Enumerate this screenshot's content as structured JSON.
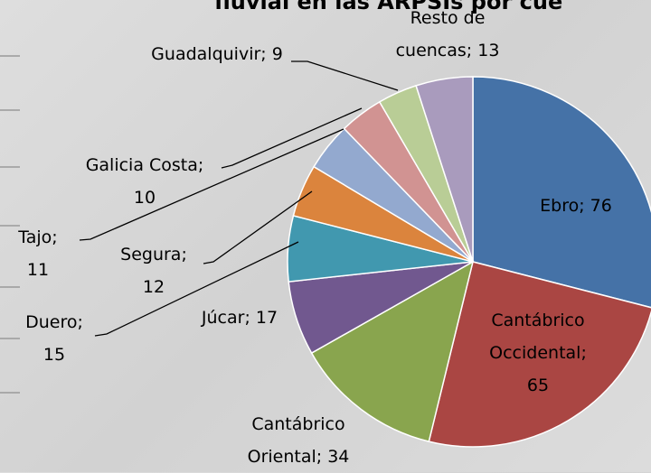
{
  "chart_data": {
    "type": "pie",
    "title": "fluvial en las ARPSIs por cue",
    "values": [
      76,
      65,
      34,
      17,
      15,
      12,
      11,
      10,
      9,
      13
    ],
    "value_labels": [
      "Ebro; 76",
      "Cantábrico\nOccidental;\n65",
      "Cantábrico\nOriental; 34",
      "Júcar; 17",
      "Duero;\n15",
      "Segura;\n12",
      "Tajo;\n11",
      "Galicia Costa;\n10",
      "Guadalquivir; 9",
      "Resto de\ncuencas; 13"
    ],
    "colors": [
      "#4572a7",
      "#aa4643",
      "#89a54e",
      "#71588f",
      "#4198af",
      "#db843d",
      "#93a9cf",
      "#d19392",
      "#b9cd96",
      "#a99bbd"
    ]
  }
}
